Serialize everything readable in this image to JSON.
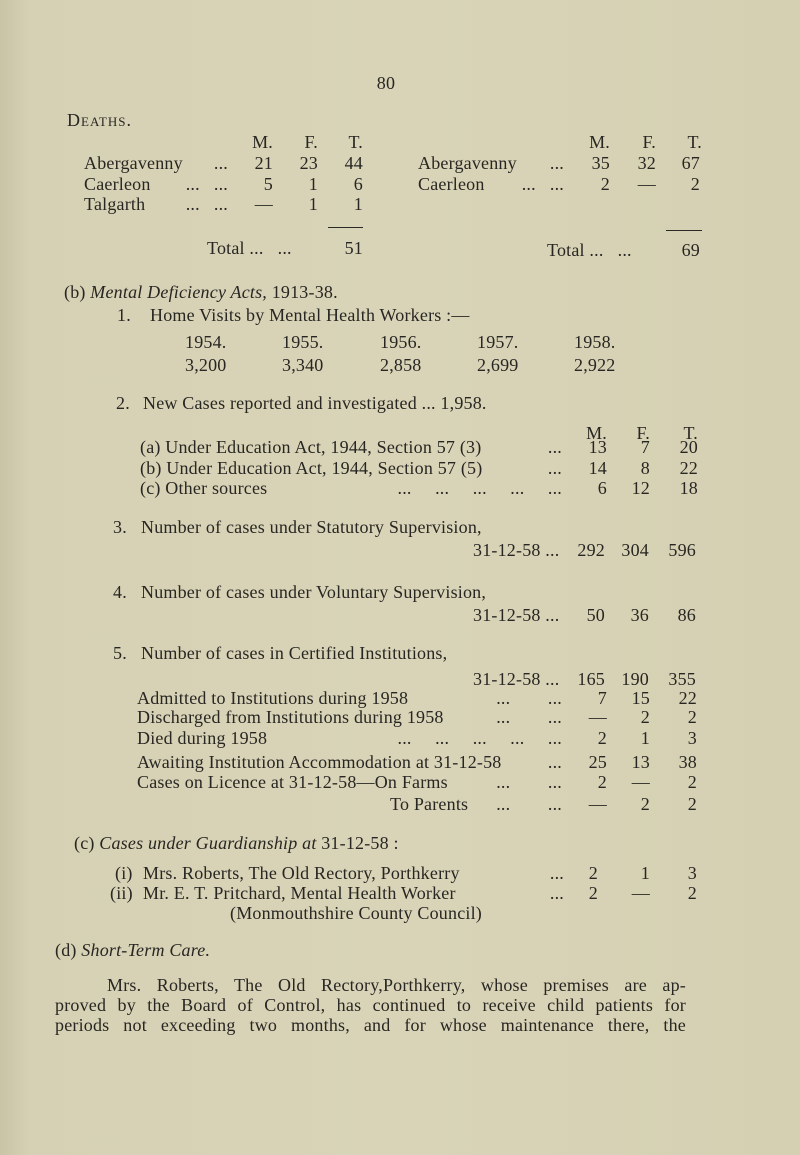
{
  "page_number": "80",
  "deaths": {
    "heading": "Deaths.",
    "headers": [
      "M.",
      "F.",
      "T."
    ],
    "left": {
      "rows": [
        {
          "name": "Abergavenny",
          "leader": "...",
          "m": "21",
          "f": "23",
          "t": "44"
        },
        {
          "name": "Caerleon",
          "leader": "...   ...",
          "m": "5",
          "f": "1",
          "t": "6"
        },
        {
          "name": "Talgarth",
          "leader": "...   ...",
          "m": "—",
          "f": "1",
          "t": "1"
        }
      ],
      "total_label": "Total ...   ...",
      "total": "51"
    },
    "right": {
      "rows": [
        {
          "name": "Abergavenny",
          "leader": "...",
          "m": "35",
          "f": "32",
          "t": "67"
        },
        {
          "name": "Caerleon",
          "leader": "...   ...",
          "m": "2",
          "f": "—",
          "t": "2"
        }
      ],
      "total_label": "Total ...   ...",
      "total": "69"
    }
  },
  "section_b": {
    "prefix": "(b) ",
    "title_italic": "Mental Deficiency Acts,",
    "title_suffix": " 1913-38.",
    "item1": {
      "num": "1.",
      "label": "Home Visits by Mental Health Workers :—",
      "years": [
        "1954.",
        "1955.",
        "1956.",
        "1957.",
        "1958."
      ],
      "values": [
        "3,200",
        "3,340",
        "2,858",
        "2,699",
        "2,922"
      ]
    },
    "item2": {
      "num": "2.",
      "label": "New Cases reported and investigated ... 1,958.",
      "headers": [
        "M.",
        "F.",
        "T."
      ],
      "rows": [
        {
          "label": "(a) Under Education Act, 1944, Section 57 (3)",
          "leader": "...",
          "m": "13",
          "f": "7",
          "t": "20"
        },
        {
          "label": "(b) Under Education Act, 1944, Section 57 (5)",
          "leader": "...",
          "m": "14",
          "f": "8",
          "t": "22"
        },
        {
          "label": "(c) Other sources",
          "leader": "...     ...     ...     ...     ...",
          "m": "6",
          "f": "12",
          "t": "18"
        }
      ]
    },
    "item3": {
      "num": "3.",
      "label": "Number of cases under Statutory Supervision,",
      "date": "31-12-58 ...",
      "m": "292",
      "f": "304",
      "t": "596"
    },
    "item4": {
      "num": "4.",
      "label": "Number of cases under Voluntary Supervision,",
      "date": "31-12-58 ...",
      "m": "50",
      "f": "36",
      "t": "86"
    },
    "item5": {
      "num": "5.",
      "label": "Number of cases in Certified Institutions,",
      "date": "31-12-58 ...",
      "m": "165",
      "f": "190",
      "t": "355",
      "rows": [
        {
          "label": "Admitted to Institutions during 1958",
          "leader": "...        ...",
          "m": "7",
          "f": "15",
          "t": "22"
        },
        {
          "label": "Discharged from Institutions during 1958",
          "leader": "...        ...",
          "m": "—",
          "f": "2",
          "t": "2"
        },
        {
          "label": "Died during 1958",
          "leader": "...     ...     ...     ...     ...",
          "m": "2",
          "f": "1",
          "t": "3"
        },
        {
          "label": "Awaiting Institution Accommodation at 31-12-58",
          "leader": "...",
          "m": "25",
          "f": "13",
          "t": "38"
        },
        {
          "label": "Cases on Licence at 31-12-58—On Farms",
          "leader": "...        ...",
          "m": "2",
          "f": "—",
          "t": "2"
        },
        {
          "label": "To Parents",
          "leader": "...        ...",
          "m": "—",
          "f": "2",
          "t": "2"
        }
      ]
    }
  },
  "section_c": {
    "prefix": "(c) ",
    "title_italic": "Cases under Guardianship at",
    "title_suffix": " 31-12-58 :",
    "rows": [
      {
        "num": "(i)",
        "label": "Mrs. Roberts, The Old Rectory, Porthkerry",
        "leader": "...",
        "m": "2",
        "f": "1",
        "t": "3"
      },
      {
        "num": "(ii)",
        "label": "Mr. E. T. Pritchard, Mental Health Worker",
        "continuation": "(Monmouthshire County Council)",
        "leader": "...",
        "m": "2",
        "f": "—",
        "t": "2"
      }
    ]
  },
  "section_d": {
    "prefix": "(d) ",
    "title_italic": "Short-Term Care.",
    "paragraph": [
      "Mrs. Roberts, The Old Rectory,Porthkerry, whose premises are ap-",
      "proved by the Board of Control, has continued to receive child patients for",
      "periods not exceeding two months, and for whose maintenance there, the"
    ]
  }
}
